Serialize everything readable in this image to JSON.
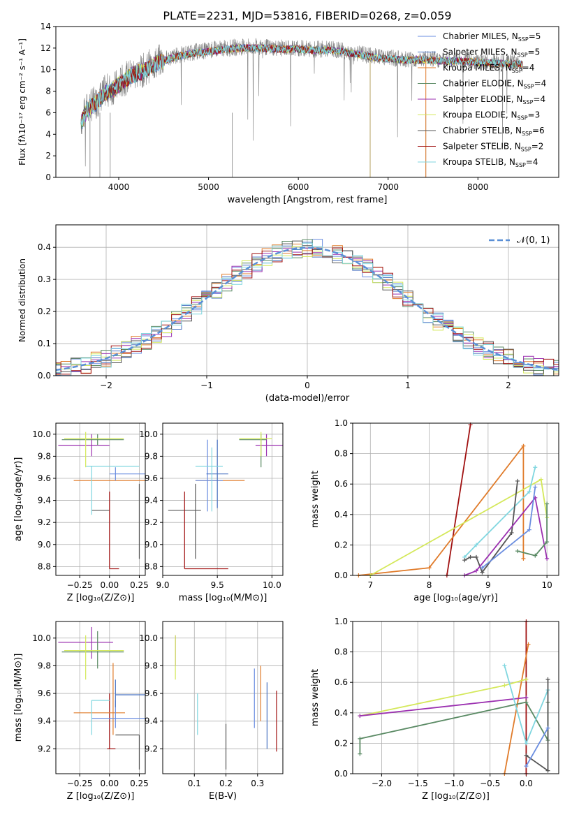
{
  "figure": {
    "suptitle": "PLATE=2231, MJD=53816, FIBERID=0268, z=0.059"
  },
  "colors": [
    "#6a8de0",
    "#4a73c2",
    "#e07b2a",
    "#5a8a64",
    "#9b30b0",
    "#d4e85a",
    "#555555",
    "#a01010",
    "#7fd6df"
  ],
  "chart_data": [
    {
      "id": "spectrum",
      "type": "line",
      "xlabel": "wavelength [Angstrom, rest frame]",
      "ylabel": "Flux [fλ10⁻¹⁷ erg cm⁻² s⁻¹ A⁻¹]",
      "xlim": [
        3300,
        8900
      ],
      "ylim": [
        0,
        14
      ],
      "xticks": [
        4000,
        5000,
        6000,
        7000,
        8000
      ],
      "yticks": [
        0,
        2,
        4,
        6,
        8,
        10,
        12,
        14
      ],
      "observed": {
        "color": "#808080",
        "x": [
          3580,
          3650,
          3750,
          3850,
          3950,
          4050,
          4150,
          4250,
          4350,
          4450,
          4600,
          4800,
          5000,
          5200,
          5400,
          5600,
          5800,
          6000,
          6200,
          6400,
          6600,
          6800,
          7000,
          7200,
          7400,
          7600,
          7800,
          8000,
          8200,
          8400,
          8500
        ],
        "y": [
          5.2,
          6.5,
          7.0,
          8.0,
          8.3,
          9.0,
          9.6,
          9.8,
          10.4,
          10.8,
          11.2,
          11.6,
          11.8,
          12.0,
          12.1,
          12.1,
          12.0,
          12.0,
          11.9,
          11.9,
          11.6,
          11.3,
          11.1,
          11.0,
          11.0,
          10.9,
          10.9,
          10.8,
          10.7,
          10.6,
          10.6
        ]
      },
      "model": {
        "x": [
          3580,
          3650,
          3750,
          3850,
          3950,
          4050,
          4150,
          4250,
          4350,
          4450,
          4600,
          4800,
          5000,
          5200,
          5400,
          5600,
          5800,
          6000,
          6200,
          6400,
          6600,
          6800,
          7000,
          7200,
          7400,
          7600,
          7800,
          8000,
          8200,
          8400,
          8500
        ],
        "y": [
          5.0,
          6.3,
          6.9,
          7.8,
          8.2,
          8.9,
          9.5,
          9.8,
          10.3,
          10.7,
          11.1,
          11.5,
          11.7,
          11.9,
          12.0,
          12.0,
          11.9,
          11.9,
          11.8,
          11.8,
          11.5,
          11.2,
          11.0,
          10.9,
          10.9,
          10.8,
          10.8,
          10.7,
          10.6,
          10.5,
          10.5
        ]
      },
      "legend": [
        {
          "label": "Chabrier MILES, N",
          "sub": "SSP",
          "tail": "=5",
          "color": "#6a8de0"
        },
        {
          "label": "Salpeter MILES, N",
          "sub": "SSP",
          "tail": "=5",
          "color": "#4a73c2"
        },
        {
          "label": "Kroupa MILES, N",
          "sub": "SSP",
          "tail": "=4",
          "color": "#e07b2a"
        },
        {
          "label": "Chabrier ELODIE, N",
          "sub": "SSP",
          "tail": "=4",
          "color": "#5a8a64"
        },
        {
          "label": "Salpeter ELODIE, N",
          "sub": "SSP",
          "tail": "=4",
          "color": "#9b30b0"
        },
        {
          "label": "Kroupa ELODIE, N",
          "sub": "SSP",
          "tail": "=3",
          "color": "#d4e85a"
        },
        {
          "label": "Chabrier STELIB, N",
          "sub": "SSP",
          "tail": "=6",
          "color": "#555555"
        },
        {
          "label": "Salpeter STELIB, N",
          "sub": "SSP",
          "tail": "=2",
          "color": "#a01010"
        },
        {
          "label": "Kroupa STELIB, N",
          "sub": "SSP",
          "tail": "=4",
          "color": "#7fd6df"
        }
      ],
      "grid": false,
      "legend_placement": "right"
    },
    {
      "id": "residuals",
      "type": "line",
      "xlabel": "(data-model)/error",
      "ylabel": "Normed distribution",
      "xlim": [
        -2.5,
        2.5
      ],
      "ylim": [
        0,
        0.47
      ],
      "xticks": [
        -2,
        -1,
        0,
        1,
        2
      ],
      "yticks": [
        0,
        0.1,
        0.2,
        0.3,
        0.4
      ],
      "normal_label": "𝒩(0, 1)",
      "normal_color": "#5a8fd6",
      "grid": true,
      "legend_placement": "top-right"
    },
    {
      "id": "age_vs_Z",
      "type": "scatter",
      "xlabel": "Z [log₁₀(Z/Z⊙)]",
      "ylabel": "age  [log₁₀(age/yr)]",
      "xlim": [
        -0.45,
        0.3
      ],
      "ylim": [
        8.72,
        10.1
      ],
      "xticks": [
        -0.25,
        0,
        0.25
      ],
      "xticklabels": [
        "−0.25",
        "0.00",
        "0.25"
      ],
      "yticks": [
        8.8,
        9.0,
        9.2,
        9.4,
        9.6,
        9.8,
        10.0
      ],
      "grid": true,
      "points": [
        {
          "x": 0.25,
          "y": 9.31,
          "xl": -0.15,
          "xh": 0,
          "yl": 8.87,
          "yh": 9.55,
          "c": 6
        },
        {
          "x": 0.0,
          "y": 8.78,
          "xl": 0,
          "xh": 0.08,
          "yl": 8.78,
          "yh": 9.48,
          "c": 7
        },
        {
          "x": 0.0,
          "y": 9.58,
          "xl": -0.3,
          "xh": 0.3,
          "yl": 9.58,
          "yh": 9.58,
          "c": 2
        },
        {
          "x": 0.05,
          "y": 9.64,
          "xl": 0,
          "xh": 0.3,
          "yl": 9.58,
          "yh": 9.7,
          "c": 0
        },
        {
          "x": -0.15,
          "y": 9.71,
          "xl": -0.2,
          "xh": 0.25,
          "yl": 9.27,
          "yh": 9.71,
          "c": 8
        },
        {
          "x": -0.15,
          "y": 9.9,
          "xl": -0.43,
          "xh": 0,
          "yl": 9.8,
          "yh": 10.0,
          "c": 4
        },
        {
          "x": -0.1,
          "y": 9.95,
          "xl": -0.4,
          "xh": 0.12,
          "yl": 9.9,
          "yh": 10.0,
          "c": 3
        },
        {
          "x": -0.2,
          "y": 9.96,
          "xl": -0.38,
          "xh": 0.12,
          "yl": 9.7,
          "yh": 10.02,
          "c": 5
        }
      ]
    },
    {
      "id": "age_vs_mass",
      "type": "scatter",
      "xlabel": "mass [log₁₀(M/M⊙)]",
      "ylabel": "",
      "xlim": [
        9.0,
        10.1
      ],
      "ylim": [
        8.72,
        10.1
      ],
      "xticks": [
        9.0,
        9.5,
        10.0
      ],
      "yticks": [
        8.8,
        9.0,
        9.2,
        9.4,
        9.6,
        9.8,
        10.0
      ],
      "grid": true,
      "points": [
        {
          "x": 9.3,
          "y": 9.31,
          "xl": 9.05,
          "xh": 9.35,
          "yl": 8.87,
          "yh": 9.55,
          "c": 6
        },
        {
          "x": 9.2,
          "y": 8.78,
          "xl": 9.2,
          "xh": 9.6,
          "yl": 8.78,
          "yh": 9.48,
          "c": 7
        },
        {
          "x": 9.4,
          "y": 9.58,
          "xl": 9.3,
          "xh": 9.75,
          "yl": 9.58,
          "yh": 9.58,
          "c": 2
        },
        {
          "x": 9.41,
          "y": 9.58,
          "xl": 9.3,
          "xh": 9.55,
          "yl": 9.3,
          "yh": 9.95,
          "c": 0
        },
        {
          "x": 9.5,
          "y": 9.64,
          "xl": 9.4,
          "xh": 9.6,
          "yl": 9.33,
          "yh": 9.95,
          "c": 1
        },
        {
          "x": 9.45,
          "y": 9.71,
          "xl": 9.3,
          "xh": 9.55,
          "yl": 9.3,
          "yh": 9.88,
          "c": 8
        },
        {
          "x": 9.95,
          "y": 9.9,
          "xl": 9.85,
          "xh": 10.1,
          "yl": 9.8,
          "yh": 10.0,
          "c": 4
        },
        {
          "x": 9.9,
          "y": 9.95,
          "xl": 9.7,
          "xh": 9.95,
          "yl": 9.7,
          "yh": 10.0,
          "c": 3
        },
        {
          "x": 9.9,
          "y": 9.96,
          "xl": 9.7,
          "xh": 10.0,
          "yl": 9.8,
          "yh": 10.02,
          "c": 5
        }
      ]
    },
    {
      "id": "weight_vs_age",
      "type": "line",
      "xlabel": "age  [log₁₀(age/yr)]",
      "ylabel": "mass weight",
      "xlim": [
        6.7,
        10.2
      ],
      "ylim": [
        0,
        1.0
      ],
      "xticks": [
        7,
        8,
        9,
        10
      ],
      "yticks": [
        0,
        0.2,
        0.4,
        0.6,
        0.8,
        1.0
      ],
      "grid": true,
      "series": [
        {
          "c": 7,
          "x": [
            8.3,
            8.7
          ],
          "y": [
            0.0,
            0.99
          ]
        },
        {
          "c": 2,
          "x": [
            6.8,
            8.0,
            9.6,
            9.6
          ],
          "y": [
            0.0,
            0.05,
            0.85,
            0.11
          ]
        },
        {
          "c": 5,
          "x": [
            7.0,
            9.9,
            10.0
          ],
          "y": [
            0.0,
            0.63,
            0.38
          ]
        },
        {
          "c": 8,
          "x": [
            8.6,
            8.8,
            9.7,
            9.8
          ],
          "y": [
            0.12,
            0.2,
            0.55,
            0.71
          ]
        },
        {
          "c": 6,
          "x": [
            8.6,
            8.7,
            8.8,
            8.9,
            9.4,
            9.5
          ],
          "y": [
            0.1,
            0.12,
            0.12,
            0.02,
            0.28,
            0.62
          ]
        },
        {
          "c": 4,
          "x": [
            8.6,
            8.8,
            9.8,
            10.0
          ],
          "y": [
            0.0,
            0.03,
            0.51,
            0.11
          ]
        },
        {
          "c": 3,
          "x": [
            9.5,
            9.8,
            10.0,
            10.0
          ],
          "y": [
            0.16,
            0.13,
            0.22,
            0.47
          ]
        },
        {
          "c": 0,
          "x": [
            8.9,
            9.7,
            9.8
          ],
          "y": [
            0.05,
            0.3,
            0.58
          ]
        }
      ]
    },
    {
      "id": "mass_vs_Z",
      "type": "scatter",
      "xlabel": "Z [log₁₀(Z/Z⊙)]",
      "ylabel": "mass [log₁₀(M/M⊙)]",
      "xlim": [
        -0.45,
        0.3
      ],
      "ylim": [
        9.02,
        10.12
      ],
      "xticks": [
        -0.25,
        0,
        0.25
      ],
      "xticklabels": [
        "−0.25",
        "0.00",
        "0.25"
      ],
      "yticks": [
        9.2,
        9.4,
        9.6,
        9.8,
        10.0
      ],
      "grid": true,
      "points": [
        {
          "x": 0.25,
          "y": 9.3,
          "xl": 0.05,
          "xh": 0.25,
          "yl": 9.05,
          "yh": 9.3,
          "c": 6
        },
        {
          "x": 0.0,
          "y": 9.2,
          "xl": -0.02,
          "xh": 0.05,
          "yl": 9.2,
          "yh": 9.6,
          "c": 7
        },
        {
          "x": 0.03,
          "y": 9.46,
          "xl": -0.3,
          "xh": 0.13,
          "yl": 9.3,
          "yh": 9.82,
          "c": 2
        },
        {
          "x": 0.05,
          "y": 9.42,
          "xl": -0.15,
          "xh": 0.3,
          "yl": 9.35,
          "yh": 9.55,
          "c": 0
        },
        {
          "x": 0.05,
          "y": 9.59,
          "xl": 0.05,
          "xh": 0.3,
          "yl": 9.5,
          "yh": 9.7,
          "c": 1
        },
        {
          "x": -0.15,
          "y": 9.55,
          "xl": -0.15,
          "xh": 0.0,
          "yl": 9.3,
          "yh": 9.55,
          "c": 8
        },
        {
          "x": -0.15,
          "y": 9.97,
          "xl": -0.43,
          "xh": 0.03,
          "yl": 9.85,
          "yh": 10.08,
          "c": 4
        },
        {
          "x": -0.1,
          "y": 9.9,
          "xl": -0.4,
          "xh": 0.12,
          "yl": 9.78,
          "yh": 10.05,
          "c": 3
        },
        {
          "x": -0.2,
          "y": 9.91,
          "xl": -0.38,
          "xh": 0.12,
          "yl": 9.7,
          "yh": 10.02,
          "c": 5
        }
      ]
    },
    {
      "id": "mass_vs_ebv",
      "type": "scatter",
      "xlabel": "E(B-V)",
      "ylabel": "",
      "xlim": [
        0.0,
        0.38
      ],
      "ylim": [
        9.02,
        10.12
      ],
      "xticks": [
        0.1,
        0.2,
        0.3
      ],
      "yticks": [
        9.2,
        9.4,
        9.6,
        9.8,
        10.0
      ],
      "grid": true,
      "bars": [
        {
          "x": 0.04,
          "yl": 9.8,
          "yh": 10.02,
          "c": 4
        },
        {
          "x": 0.04,
          "yl": 9.7,
          "yh": 10.02,
          "c": 5
        },
        {
          "x": 0.11,
          "yl": 9.3,
          "yh": 9.6,
          "c": 8
        },
        {
          "x": 0.2,
          "yl": 9.05,
          "yh": 9.38,
          "c": 6
        },
        {
          "x": 0.29,
          "yl": 9.35,
          "yh": 9.78,
          "c": 0
        },
        {
          "x": 0.31,
          "yl": 9.4,
          "yh": 9.8,
          "c": 2
        },
        {
          "x": 0.33,
          "yl": 9.2,
          "yh": 9.68,
          "c": 1
        },
        {
          "x": 0.36,
          "yl": 9.18,
          "yh": 9.62,
          "c": 7
        }
      ]
    },
    {
      "id": "weight_vs_Z",
      "type": "line",
      "xlabel": "Z [log₁₀(Z/Z⊙)]",
      "ylabel": "mass weight",
      "xlim": [
        -2.4,
        0.45
      ],
      "ylim": [
        0,
        1.0
      ],
      "xticks": [
        -2.0,
        -1.5,
        -1.0,
        -0.5,
        0.0
      ],
      "xticklabels": [
        "−2.0",
        "−1.5",
        "−1.0",
        "−0.5",
        "0.0"
      ],
      "yticks": [
        0,
        0.2,
        0.4,
        0.6,
        0.8,
        1.0
      ],
      "grid": true,
      "series": [
        {
          "c": 7,
          "x": [
            0.0,
            0.0
          ],
          "y": [
            0.0,
            1.0
          ]
        },
        {
          "c": 2,
          "x": [
            -0.3,
            0.03
          ],
          "y": [
            0.0,
            0.85
          ]
        },
        {
          "c": 5,
          "x": [
            -2.3,
            -0.3,
            0.0
          ],
          "y": [
            0.38,
            0.58,
            0.62
          ]
        },
        {
          "c": 4,
          "x": [
            -2.3,
            0.0
          ],
          "y": [
            0.38,
            0.5
          ]
        },
        {
          "c": 3,
          "x": [
            -2.3,
            -2.3,
            0.0,
            0.3,
            0.3
          ],
          "y": [
            0.13,
            0.23,
            0.47,
            0.22,
            0.47
          ]
        },
        {
          "c": 8,
          "x": [
            -0.3,
            0.0,
            0.3
          ],
          "y": [
            0.71,
            0.2,
            0.55
          ]
        },
        {
          "c": 6,
          "x": [
            0.0,
            0.3,
            0.3
          ],
          "y": [
            0.12,
            0.02,
            0.62
          ]
        },
        {
          "c": 0,
          "x": [
            0.0,
            0.3
          ],
          "y": [
            0.05,
            0.3
          ]
        }
      ]
    }
  ]
}
